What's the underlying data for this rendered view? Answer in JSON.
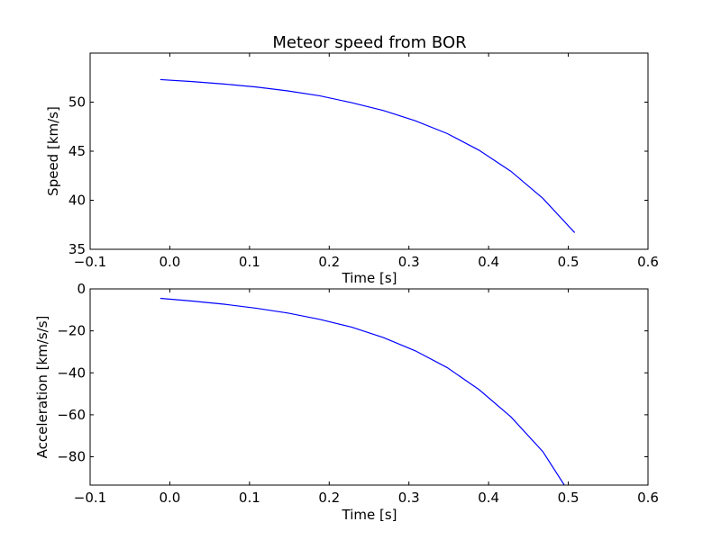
{
  "chart_data": [
    {
      "type": "line",
      "title": "Meteor speed from  BOR",
      "xlabel": "Time [s]",
      "ylabel": "Speed [km/s]",
      "xlim": [
        -0.1,
        0.6
      ],
      "ylim": [
        35,
        55
      ],
      "xticks": [
        -0.1,
        0.0,
        0.1,
        0.2,
        0.3,
        0.4,
        0.5,
        0.6
      ],
      "xtick_labels": [
        "−0.1",
        "0.0",
        "0.1",
        "0.2",
        "0.3",
        "0.4",
        "0.5",
        "0.6"
      ],
      "yticks": [
        35,
        40,
        45,
        50
      ],
      "ytick_labels": [
        "35",
        "40",
        "45",
        "50"
      ],
      "grid": false,
      "series": [
        {
          "color": "#0000ff",
          "x": [
            -0.012,
            0.028,
            0.068,
            0.108,
            0.148,
            0.188,
            0.228,
            0.268,
            0.308,
            0.348,
            0.388,
            0.428,
            0.468,
            0.508
          ],
          "y": [
            52.3,
            52.1,
            51.85,
            51.55,
            51.15,
            50.65,
            49.95,
            49.15,
            48.1,
            46.8,
            45.1,
            42.95,
            40.2,
            36.7
          ]
        }
      ]
    },
    {
      "type": "line",
      "title": "",
      "xlabel": "Time [s]",
      "ylabel": "Acceleration [km/s/s]",
      "xlim": [
        -0.1,
        0.6
      ],
      "ylim": [
        -93.5,
        0
      ],
      "xticks": [
        -0.1,
        0.0,
        0.1,
        0.2,
        0.3,
        0.4,
        0.5,
        0.6
      ],
      "xtick_labels": [
        "−0.1",
        "0.0",
        "0.1",
        "0.2",
        "0.3",
        "0.4",
        "0.5",
        "0.6"
      ],
      "yticks": [
        0,
        -20,
        -40,
        -60,
        -80
      ],
      "ytick_labels": [
        "0",
        "−20",
        "−40",
        "−60",
        "−80"
      ],
      "grid": false,
      "series": [
        {
          "color": "#0000ff",
          "x": [
            -0.012,
            0.028,
            0.068,
            0.108,
            0.148,
            0.188,
            0.228,
            0.268,
            0.308,
            0.348,
            0.388,
            0.428,
            0.468,
            0.495
          ],
          "y": [
            -4.5,
            -5.8,
            -7.3,
            -9.2,
            -11.5,
            -14.5,
            -18.2,
            -23.2,
            -29.5,
            -37.5,
            -48.0,
            -61.0,
            -77.5,
            -93.5
          ]
        }
      ]
    }
  ]
}
